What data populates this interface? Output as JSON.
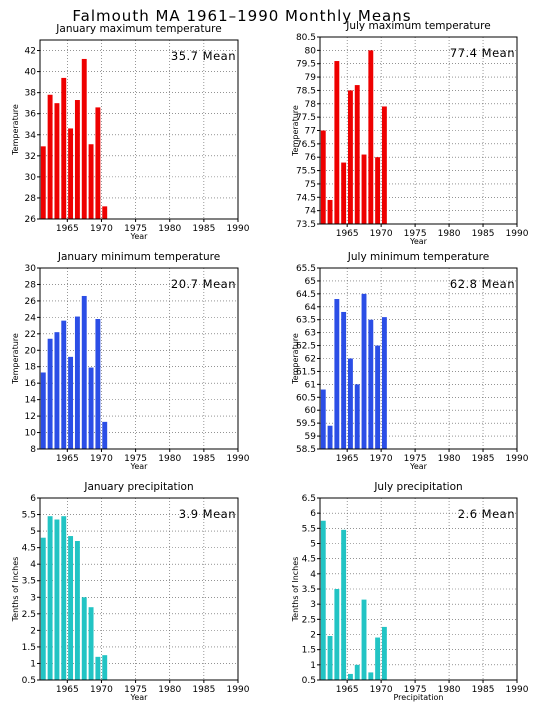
{
  "page": {
    "title": "Falmouth MA  1961–1990 Monthly Means"
  },
  "chart_data": [
    {
      "type": "bar",
      "title": "January maximum temperature",
      "xlabel": "Year",
      "ylabel": "Temperature",
      "mean_label": "35.7 Mean",
      "color": "#ee0000",
      "xlim": [
        1961,
        1990
      ],
      "xticks": [
        1965,
        1970,
        1975,
        1980,
        1985,
        1990
      ],
      "ylim": [
        26,
        43
      ],
      "yticks": [
        26,
        28,
        30,
        32,
        34,
        36,
        38,
        40,
        42
      ],
      "x": [
        1961,
        1962,
        1963,
        1964,
        1965,
        1966,
        1967,
        1968,
        1969,
        1970
      ],
      "values": [
        32.9,
        37.8,
        37.0,
        39.4,
        34.6,
        37.3,
        41.2,
        33.1,
        36.6,
        27.2
      ],
      "grid": true
    },
    {
      "type": "bar",
      "title": "July maximum temperature",
      "xlabel": "Year",
      "ylabel": "Temperature",
      "mean_label": "77.4 Mean",
      "color": "#ee0000",
      "xlim": [
        1961,
        1990
      ],
      "xticks": [
        1965,
        1970,
        1975,
        1980,
        1985,
        1990
      ],
      "ylim": [
        73.5,
        80.5
      ],
      "yticks": [
        73.5,
        74,
        74.5,
        75,
        75.5,
        76,
        76.5,
        77,
        77.5,
        78,
        78.5,
        79,
        79.5,
        80,
        80.5
      ],
      "x": [
        1961,
        1962,
        1963,
        1964,
        1965,
        1966,
        1967,
        1968,
        1969,
        1970
      ],
      "values": [
        77.0,
        74.4,
        79.6,
        75.8,
        78.5,
        78.7,
        76.1,
        80.0,
        76.0,
        77.9
      ],
      "grid": true
    },
    {
      "type": "bar",
      "title": "January minimum temperature",
      "xlabel": "Year",
      "ylabel": "Temperature",
      "mean_label": "20.7 Mean",
      "color": "#2b4ee6",
      "xlim": [
        1961,
        1990
      ],
      "xticks": [
        1965,
        1970,
        1975,
        1980,
        1985,
        1990
      ],
      "ylim": [
        8,
        30
      ],
      "yticks": [
        8,
        10,
        12,
        14,
        16,
        18,
        20,
        22,
        24,
        26,
        28,
        30
      ],
      "x": [
        1961,
        1962,
        1963,
        1964,
        1965,
        1966,
        1967,
        1968,
        1969,
        1970
      ],
      "values": [
        17.3,
        21.4,
        22.2,
        23.6,
        19.2,
        24.1,
        26.6,
        17.9,
        23.8,
        11.3
      ],
      "grid": true
    },
    {
      "type": "bar",
      "title": "July minimum temperature",
      "xlabel": "Year",
      "ylabel": "Temperature",
      "mean_label": "62.8 Mean",
      "color": "#2b4ee6",
      "xlim": [
        1961,
        1990
      ],
      "xticks": [
        1965,
        1970,
        1975,
        1980,
        1985,
        1990
      ],
      "ylim": [
        58.5,
        65.5
      ],
      "yticks": [
        58.5,
        59,
        59.5,
        60,
        60.5,
        61,
        61.5,
        62,
        62.5,
        63,
        63.5,
        64,
        64.5,
        65,
        65.5
      ],
      "x": [
        1961,
        1962,
        1963,
        1964,
        1965,
        1966,
        1967,
        1968,
        1969,
        1970
      ],
      "values": [
        60.8,
        59.4,
        64.3,
        63.8,
        62.0,
        61.0,
        64.5,
        63.5,
        62.5,
        63.6
      ],
      "grid": true
    },
    {
      "type": "bar",
      "title": "January precipitation",
      "xlabel": "Year",
      "ylabel": "Tenths of Inches",
      "mean_label": "3.9  Mean",
      "color": "#22c4c4",
      "xlim": [
        1961,
        1990
      ],
      "xticks": [
        1965,
        1970,
        1975,
        1980,
        1985,
        1990
      ],
      "ylim": [
        0.5,
        6
      ],
      "yticks": [
        0.5,
        1,
        1.5,
        2,
        2.5,
        3,
        3.5,
        4,
        4.5,
        5,
        5.5,
        6
      ],
      "x": [
        1961,
        1962,
        1963,
        1964,
        1965,
        1966,
        1967,
        1968,
        1969,
        1970
      ],
      "values": [
        4.8,
        5.45,
        5.35,
        5.45,
        4.85,
        4.7,
        3.0,
        2.7,
        1.2,
        1.25
      ],
      "grid": true
    },
    {
      "type": "bar",
      "title": "July precipitation",
      "xlabel": "Precipitation",
      "ylabel": "Tenths of Inches",
      "mean_label": "2.6  Mean",
      "color": "#22c4c4",
      "xlim": [
        1961,
        1990
      ],
      "xticks": [
        1965,
        1970,
        1975,
        1980,
        1985,
        1990
      ],
      "ylim": [
        0.5,
        6.5
      ],
      "yticks": [
        0.5,
        1,
        1.5,
        2,
        2.5,
        3,
        3.5,
        4,
        4.5,
        5,
        5.5,
        6,
        6.5
      ],
      "x": [
        1961,
        1962,
        1963,
        1964,
        1965,
        1966,
        1967,
        1968,
        1969,
        1970
      ],
      "values": [
        5.75,
        1.95,
        3.5,
        5.45,
        0.7,
        1.0,
        3.15,
        0.75,
        1.9,
        2.25
      ],
      "grid": true
    }
  ]
}
